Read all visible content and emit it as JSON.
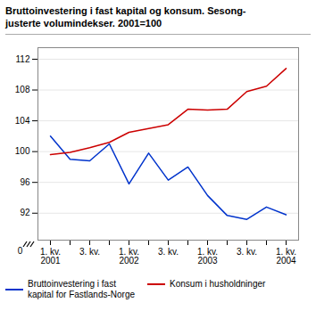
{
  "chart_data": {
    "type": "line",
    "title": "Bruttoinvestering i fast kapital og konsum. Sesong-\njusterte volumindekser. 2001=100",
    "categories": [
      "1. kv.\n2001",
      null,
      "3. kv.",
      null,
      "1. kv.\n2002",
      null,
      "3. kv.",
      null,
      "1. kv.\n2003",
      null,
      "3. kv.",
      null,
      "1. kv.\n2004"
    ],
    "series": [
      {
        "name": "Bruttoinvestering i fast\nkapital for Fastlands-Norge",
        "color": "#0033cc",
        "values": [
          102.0,
          99.0,
          98.8,
          101.0,
          95.8,
          99.8,
          96.3,
          98.0,
          94.3,
          91.7,
          91.2,
          92.8,
          91.8
        ]
      },
      {
        "name": "Konsum i husholdninger",
        "color": "#cc0000",
        "values": [
          99.6,
          99.9,
          100.5,
          101.2,
          102.5,
          103.0,
          103.5,
          105.5,
          105.4,
          105.5,
          107.8,
          108.5,
          110.8
        ]
      }
    ],
    "ylim": [
      88.5,
      113.5
    ],
    "yticks": [
      92,
      96,
      100,
      104,
      108,
      112
    ],
    "grid": true,
    "legend": "lower left",
    "annotations": [
      "0"
    ]
  }
}
